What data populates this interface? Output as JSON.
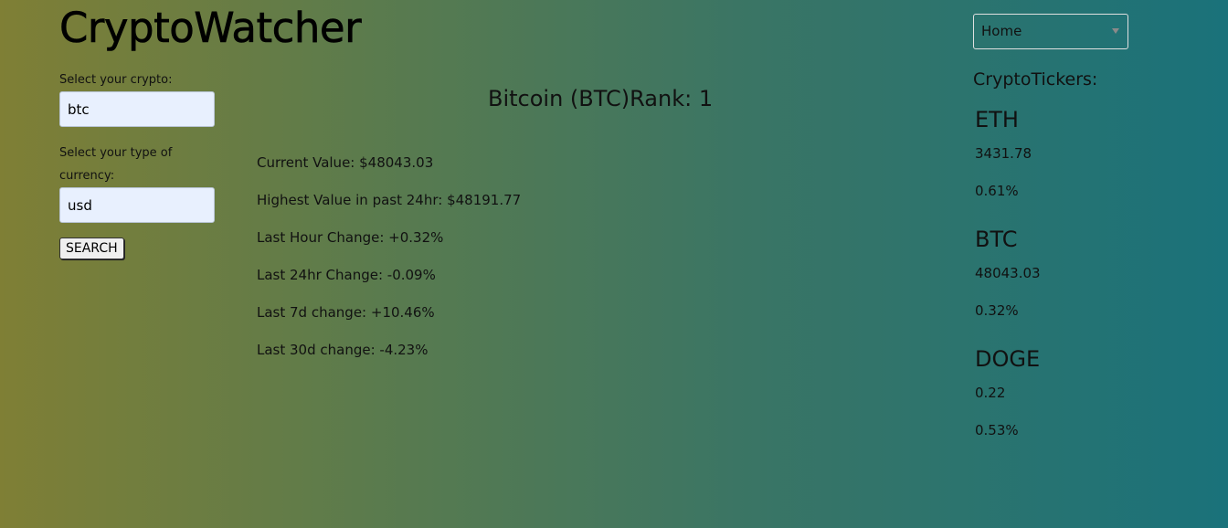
{
  "app": {
    "title": "CryptoWatcher"
  },
  "form": {
    "crypto_label": "Select your crypto:",
    "crypto_value": "btc",
    "currency_label": "Select your type of currency:",
    "currency_value": "usd",
    "search_label": "SEARCH"
  },
  "coin": {
    "heading": "Bitcoin (BTC)Rank: 1",
    "stats": [
      "Current Value: $48043.03",
      "Highest Value in past 24hr: $48191.77",
      "Last Hour Change: +0.32%",
      "Last 24hr Change: -0.09%",
      "Last 7d change: +10.46%",
      "Last 30d change: -4.23%"
    ]
  },
  "nav": {
    "selected": "Home",
    "icon": "chevron-down-icon"
  },
  "tickers": {
    "title": "CryptoTickers:",
    "items": [
      {
        "symbol": "ETH",
        "price": "3431.78",
        "change": "0.61%"
      },
      {
        "symbol": "BTC",
        "price": "48043.03",
        "change": "0.32%"
      },
      {
        "symbol": "DOGE",
        "price": "0.22",
        "change": "0.53%"
      }
    ]
  },
  "colors": {
    "gradient_start": "#7f7f35",
    "gradient_end": "#1a727a",
    "input_background": "#e8f0fe"
  }
}
